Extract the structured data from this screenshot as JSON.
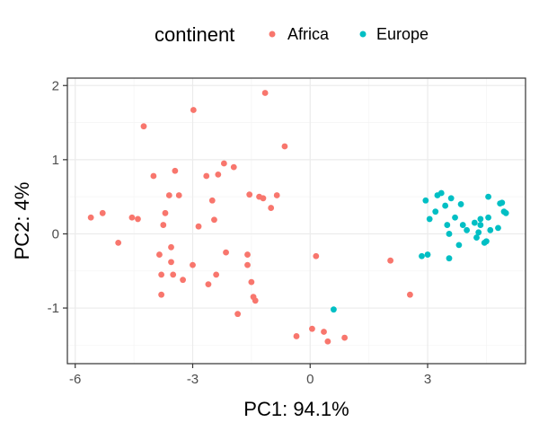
{
  "chart_data": {
    "type": "scatter",
    "xlabel": "PC1: 94.1%",
    "ylabel": "PC2: 4%",
    "legend": {
      "title": "continent",
      "position": "top"
    },
    "xlim": [
      -6.2,
      5.5
    ],
    "ylim": [
      -1.75,
      2.1
    ],
    "xticks": [
      -6,
      -3,
      0,
      3
    ],
    "xtick_labels": [
      "-6",
      "-3",
      "0",
      "3"
    ],
    "yticks": [
      -1,
      0,
      1,
      2
    ],
    "ytick_labels": [
      "-1",
      "0",
      "1",
      "2"
    ],
    "grid": true,
    "background": "#ffffff",
    "border_color": "#333333",
    "grid_major_color": "#ebebeb",
    "grid_minor_color": "#f5f5f5",
    "series": [
      {
        "name": "Africa",
        "color": "#F8766D",
        "points": [
          [
            -5.6,
            0.22
          ],
          [
            -5.3,
            0.28
          ],
          [
            -4.9,
            -0.12
          ],
          [
            -4.55,
            0.22
          ],
          [
            -4.4,
            0.2
          ],
          [
            -4.25,
            1.45
          ],
          [
            -4.0,
            0.78
          ],
          [
            -3.85,
            -0.28
          ],
          [
            -3.8,
            -0.55
          ],
          [
            -3.8,
            -0.82
          ],
          [
            -3.75,
            0.12
          ],
          [
            -3.7,
            0.28
          ],
          [
            -3.6,
            0.52
          ],
          [
            -3.55,
            -0.18
          ],
          [
            -3.55,
            -0.38
          ],
          [
            -3.5,
            -0.55
          ],
          [
            -3.45,
            0.85
          ],
          [
            -3.35,
            0.52
          ],
          [
            -3.25,
            -0.62
          ],
          [
            -3.0,
            -0.42
          ],
          [
            -2.98,
            1.67
          ],
          [
            -2.85,
            0.1
          ],
          [
            -2.65,
            0.78
          ],
          [
            -2.6,
            -0.68
          ],
          [
            -2.5,
            0.45
          ],
          [
            -2.45,
            0.19
          ],
          [
            -2.4,
            -0.55
          ],
          [
            -2.35,
            0.8
          ],
          [
            -2.2,
            0.95
          ],
          [
            -2.15,
            -0.25
          ],
          [
            -1.95,
            0.9
          ],
          [
            -1.85,
            -1.08
          ],
          [
            -1.6,
            -0.42
          ],
          [
            -1.6,
            -0.28
          ],
          [
            -1.55,
            0.53
          ],
          [
            -1.5,
            -0.65
          ],
          [
            -1.45,
            -0.85
          ],
          [
            -1.4,
            -0.9
          ],
          [
            -1.3,
            0.5
          ],
          [
            -1.2,
            0.48
          ],
          [
            -1.15,
            1.9
          ],
          [
            -1.0,
            0.35
          ],
          [
            -0.85,
            0.52
          ],
          [
            -0.65,
            1.18
          ],
          [
            -0.35,
            -1.38
          ],
          [
            0.05,
            -1.28
          ],
          [
            0.15,
            -0.3
          ],
          [
            0.35,
            -1.32
          ],
          [
            0.45,
            -1.45
          ],
          [
            0.88,
            -1.4
          ],
          [
            2.05,
            -0.36
          ],
          [
            2.55,
            -0.82
          ]
        ]
      },
      {
        "name": "Europe",
        "color": "#00BFC4",
        "points": [
          [
            0.6,
            -1.02
          ],
          [
            2.85,
            -0.3
          ],
          [
            2.95,
            0.45
          ],
          [
            3.0,
            -0.28
          ],
          [
            3.05,
            0.2
          ],
          [
            3.2,
            0.3
          ],
          [
            3.25,
            0.52
          ],
          [
            3.35,
            0.55
          ],
          [
            3.45,
            0.38
          ],
          [
            3.5,
            0.12
          ],
          [
            3.55,
            0.0
          ],
          [
            3.55,
            -0.33
          ],
          [
            3.6,
            0.48
          ],
          [
            3.7,
            0.22
          ],
          [
            3.8,
            -0.15
          ],
          [
            3.85,
            0.4
          ],
          [
            3.9,
            0.12
          ],
          [
            4.0,
            0.05
          ],
          [
            4.2,
            0.15
          ],
          [
            4.25,
            -0.05
          ],
          [
            4.3,
            0.02
          ],
          [
            4.35,
            0.12
          ],
          [
            4.35,
            0.2
          ],
          [
            4.45,
            -0.12
          ],
          [
            4.5,
            -0.1
          ],
          [
            4.55,
            0.22
          ],
          [
            4.55,
            0.5
          ],
          [
            4.6,
            0.05
          ],
          [
            4.8,
            0.08
          ],
          [
            4.85,
            0.41
          ],
          [
            4.9,
            0.42
          ],
          [
            4.95,
            0.3
          ],
          [
            5.0,
            0.28
          ]
        ]
      }
    ]
  }
}
